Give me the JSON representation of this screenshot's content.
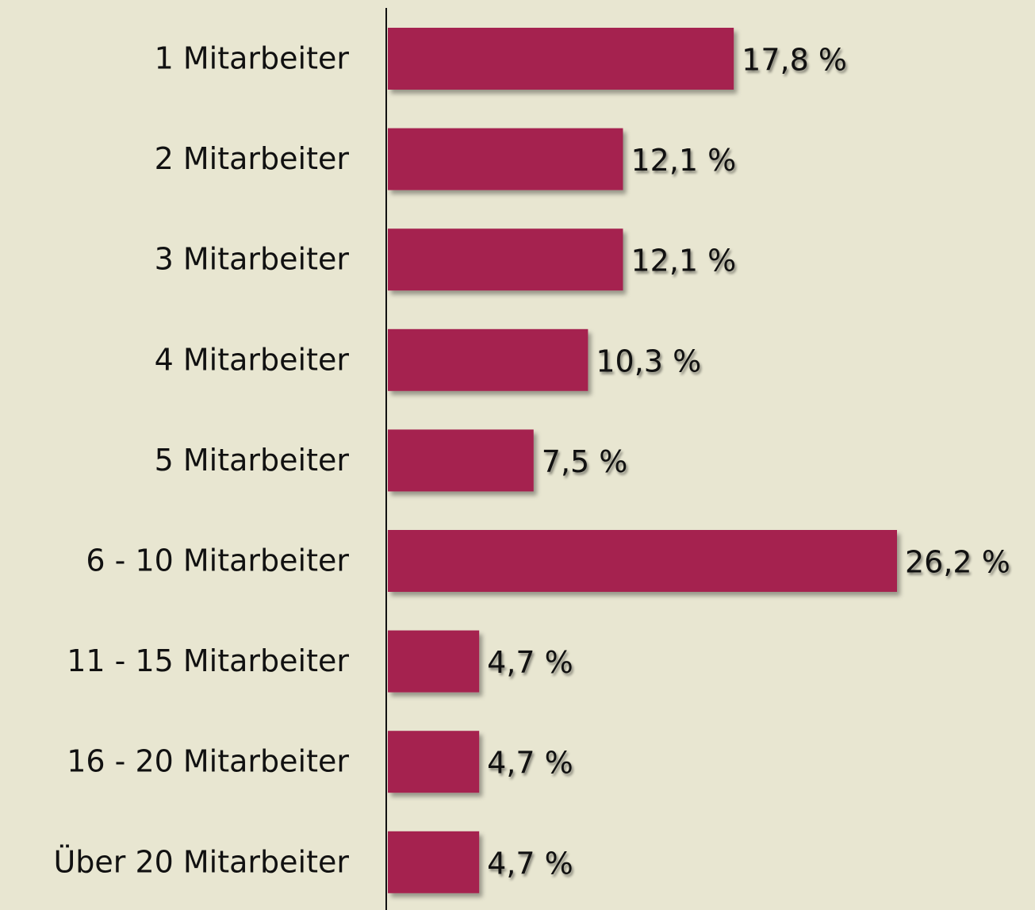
{
  "chart_data": {
    "type": "hbar",
    "categories": [
      "1 Mitarbeiter",
      "2 Mitarbeiter",
      "3 Mitarbeiter",
      "4 Mitarbeiter",
      "5 Mitarbeiter",
      "6 - 10 Mitarbeiter",
      "11 - 15 Mitarbeiter",
      "16 - 20 Mitarbeiter",
      "Über 20 Mitarbeiter"
    ],
    "values": [
      17.8,
      12.1,
      12.1,
      10.3,
      7.5,
      26.2,
      4.7,
      4.7,
      4.7
    ],
    "value_labels": [
      "17,8 %",
      "12,1 %",
      "12,1 %",
      "10,3 %",
      "7,5 %",
      "26,2 %",
      "4,7 %",
      "4,7 %",
      "4,7 %"
    ],
    "color": "#a52350"
  }
}
